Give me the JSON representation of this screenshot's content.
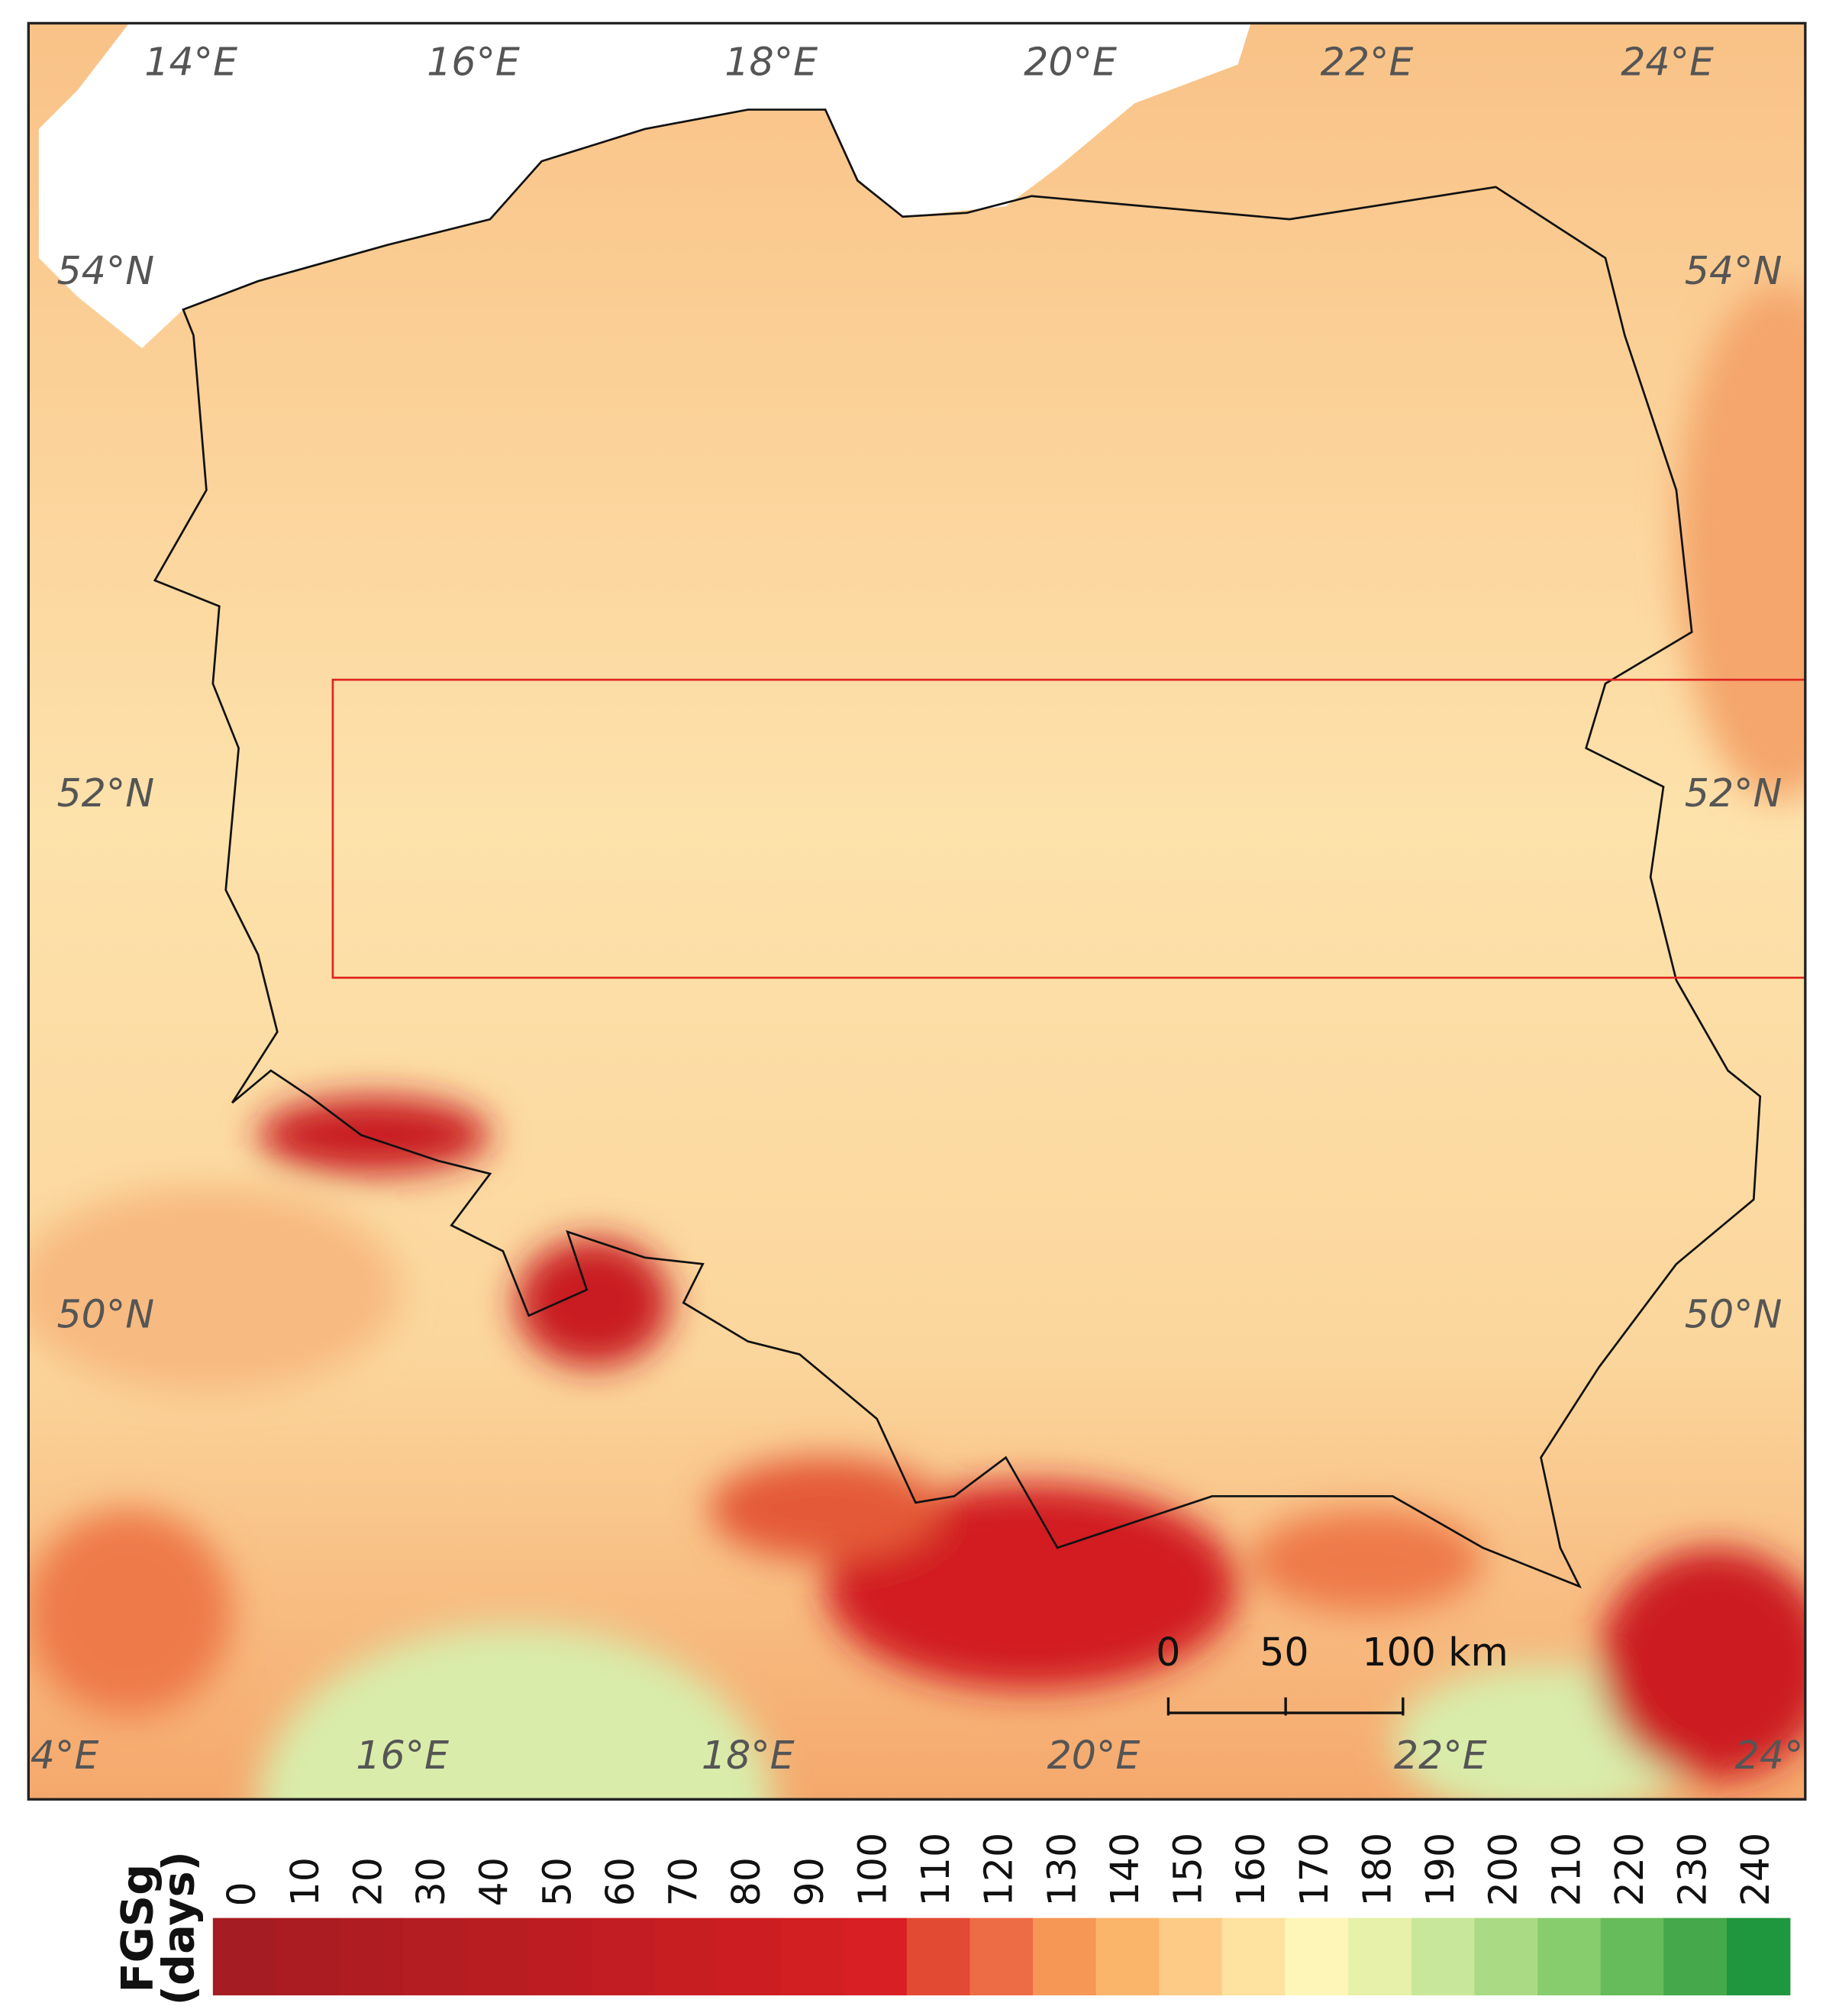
{
  "map": {
    "top_labels": [
      "14°E",
      "16°E",
      "18°E",
      "20°E",
      "22°E",
      "24°E"
    ],
    "left_labels": [
      "54°N",
      "52°N",
      "50°N"
    ],
    "right_labels": [
      "54°N",
      "52°N",
      "50°N"
    ],
    "bottom_labels": [
      "4°E",
      "16°E",
      "18°E",
      "20°E",
      "22°E",
      "24°"
    ],
    "scale_bar": {
      "labels": [
        "0",
        "50",
        "100 km"
      ]
    }
  },
  "legend": {
    "title_lines": [
      "FGSg",
      "(days)"
    ],
    "ticks": [
      "0",
      "10",
      "20",
      "30",
      "40",
      "50",
      "60",
      "70",
      "80",
      "90",
      "100",
      "110",
      "120",
      "130",
      "140",
      "150",
      "160",
      "170",
      "180",
      "190",
      "200",
      "210",
      "220",
      "230",
      "240"
    ],
    "colors": [
      "#a51c22",
      "#aa1c22",
      "#af1d22",
      "#b41d22",
      "#b81d22",
      "#bd1d22",
      "#c21d22",
      "#c71e22",
      "#cc1e22",
      "#d11f22",
      "#d71f24",
      "#e34a33",
      "#ee6c45",
      "#f69756",
      "#fbb56b",
      "#fdcb86",
      "#fee2a0",
      "#fef6b8",
      "#e7f1a9",
      "#c9e79a",
      "#aadb84",
      "#88cd6d",
      "#66bb5a",
      "#45a84a",
      "#1f973e"
    ]
  }
}
